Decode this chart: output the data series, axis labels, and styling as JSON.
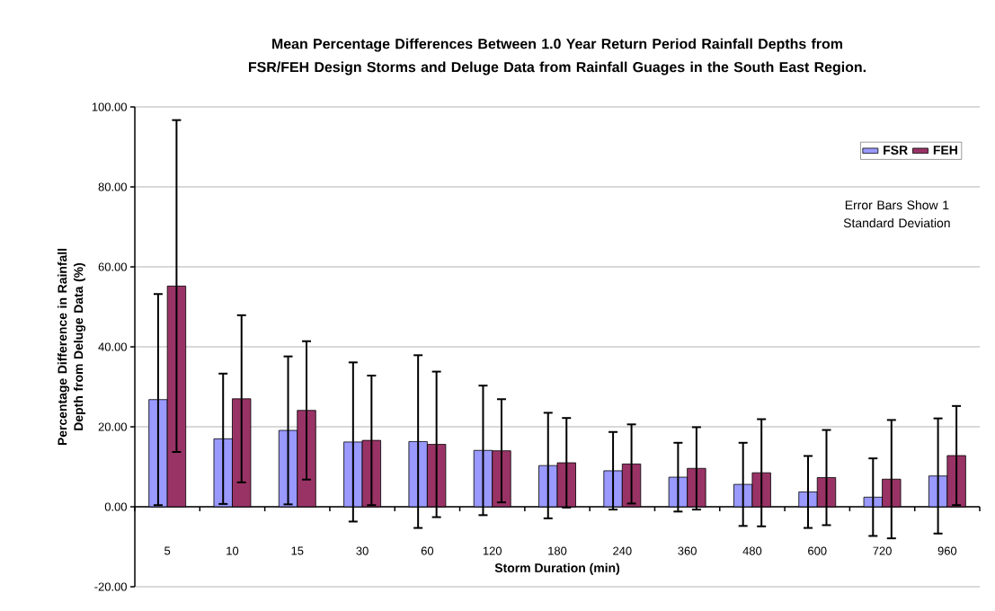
{
  "chart_data": {
    "type": "bar",
    "title": "Mean Percentage Differences Between 1.0 Year Return Period Rainfall Depths from FSR/FEH Design Storms and Deluge Data from Rainfall Guages in the South East Region.",
    "xlabel": "Storm Duration (min)",
    "ylabel": "Percentage Difference in Rainfall Depth from Deluge Data (%)",
    "categories": [
      "5",
      "10",
      "15",
      "30",
      "60",
      "120",
      "180",
      "240",
      "360",
      "480",
      "600",
      "720",
      "960"
    ],
    "series": [
      {
        "name": "FSR",
        "color": "#9999ff",
        "values": [
          26.8,
          17.0,
          19.1,
          16.2,
          16.3,
          14.1,
          10.3,
          9.0,
          7.4,
          5.6,
          3.7,
          2.4,
          7.7
        ],
        "errors": [
          26.4,
          16.3,
          18.5,
          19.9,
          21.6,
          16.2,
          13.2,
          9.7,
          8.6,
          10.4,
          9.0,
          9.7,
          14.4
        ]
      },
      {
        "name": "FEH",
        "color": "#993366",
        "values": [
          55.2,
          27.0,
          24.1,
          16.6,
          15.6,
          14.0,
          11.0,
          10.7,
          9.6,
          8.5,
          7.3,
          6.9,
          12.8
        ],
        "errors": [
          41.5,
          20.9,
          17.3,
          16.2,
          18.2,
          12.9,
          11.2,
          9.9,
          10.3,
          13.4,
          11.9,
          14.8,
          12.4
        ]
      }
    ],
    "ylim": [
      -20,
      100
    ],
    "yticks": [
      {
        "value": -20,
        "label": "-20.00"
      },
      {
        "value": 0,
        "label": "0.00"
      },
      {
        "value": 20,
        "label": "20.00"
      },
      {
        "value": 40,
        "label": "40.00"
      },
      {
        "value": 60,
        "label": "60.00"
      },
      {
        "value": 80,
        "label": "80.00"
      },
      {
        "value": 100,
        "label": "100.00"
      }
    ],
    "grid": "y",
    "legend": "top right",
    "annotations": [
      "Error Bars Show 1 Standard Deviation"
    ]
  }
}
